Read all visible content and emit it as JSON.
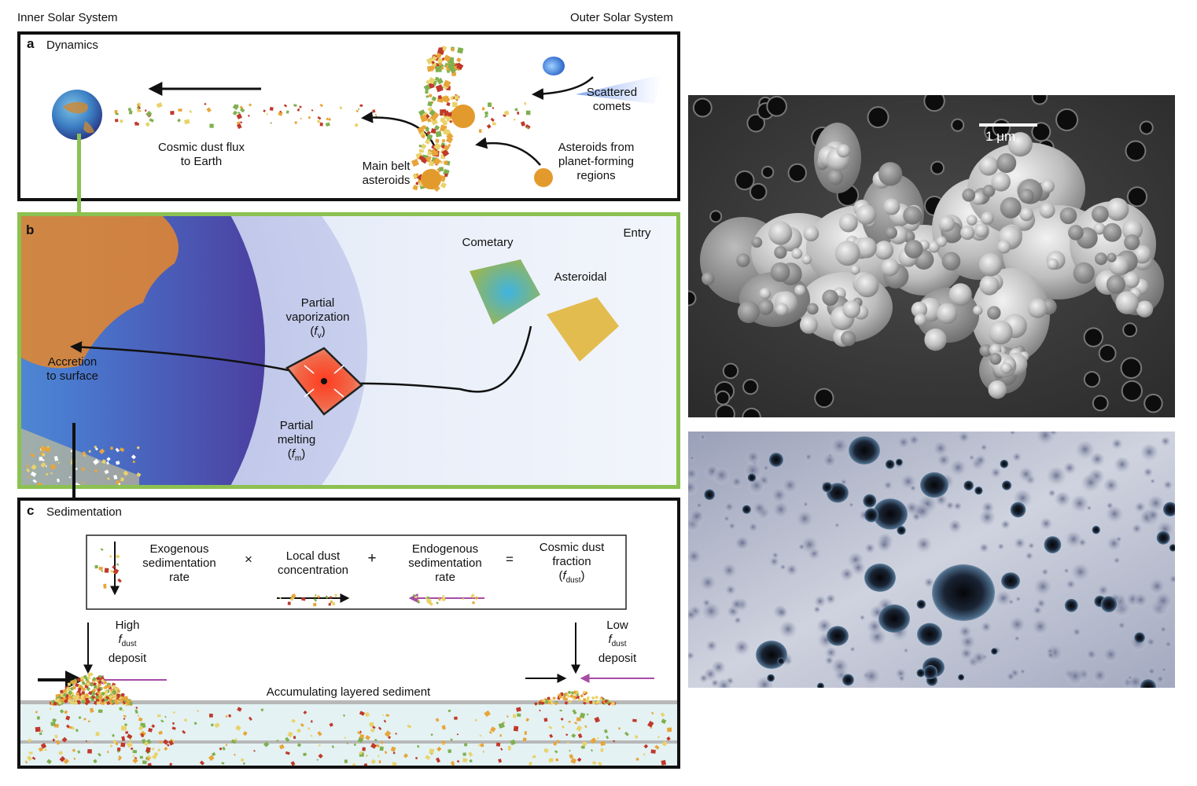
{
  "header": {
    "left": "Inner Solar System",
    "right": "Outer Solar System"
  },
  "panel_a": {
    "letter": "a",
    "title": "Dynamics",
    "labels": {
      "cosmic_flux_1": "Cosmic dust flux",
      "cosmic_flux_2": "to Earth",
      "main_belt_1": "Main belt",
      "main_belt_2": "asteroids",
      "scattered_1": "Scattered",
      "scattered_2": "comets",
      "asteroids_from_1": "Asteroids from",
      "asteroids_from_2": "planet-forming",
      "asteroids_from_3": "regions"
    }
  },
  "panel_b": {
    "letter": "b",
    "labels": {
      "entry": "Entry",
      "cometary": "Cometary",
      "asteroidal": "Asteroidal",
      "pv_1": "Partial",
      "pv_2": "vaporization",
      "pv_3_sym": "f",
      "pv_3_sub": "v",
      "pm_1": "Partial",
      "pm_2": "melting",
      "pm_3_sym": "f",
      "pm_3_sub": "m",
      "accretion_1": "Accretion",
      "accretion_2": "to surface"
    }
  },
  "panel_c": {
    "letter": "c",
    "title": "Sedimentation",
    "equation": {
      "exo_1": "Exogenous",
      "exo_2": "sedimentation",
      "exo_3": "rate",
      "times": "×",
      "local_1": "Local dust",
      "local_2": "concentration",
      "plus": "+",
      "endo_1": "Endogenous",
      "endo_2": "sedimentation",
      "endo_3": "rate",
      "equals": "=",
      "frac_1": "Cosmic dust",
      "frac_2": "fraction",
      "frac_sym": "f",
      "frac_sub": "dust"
    },
    "high_1": "High",
    "high_sym": "f",
    "high_sub": "dust",
    "high_3": "deposit",
    "low_1": "Low",
    "low_sym": "f",
    "low_sub": "dust",
    "low_3": "deposit",
    "sediment": "Accumulating layered sediment"
  },
  "micrograph": {
    "scale_label": "1 μm"
  },
  "colors": {
    "green_frame": "#8cc152",
    "dust_orange": "#e8a53a",
    "dust_red": "#c0392b",
    "dust_green": "#7fb04f",
    "magenta_arrow": "#a64ca6",
    "sediment_fill": "#e4f2f3"
  }
}
